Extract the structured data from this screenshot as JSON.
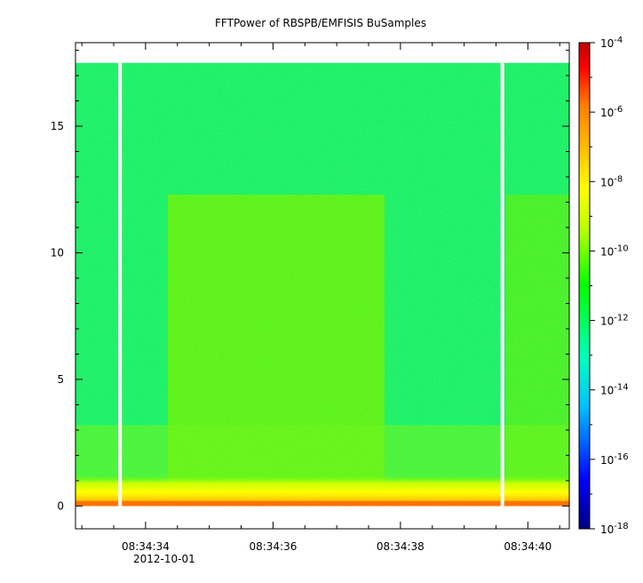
{
  "chart_data": {
    "type": "heatmap",
    "title": "FFTPower of RBSPB/EMFISIS  BuSamples",
    "xlabel": "",
    "ylabel": "",
    "x_ticks": [
      "08:34:34",
      "08:34:36",
      "08:34:38",
      "08:34:40"
    ],
    "x_tick_values_seconds": [
      34,
      36,
      38,
      40
    ],
    "x_date_label": "2012-10-01",
    "xlim_seconds": [
      32.9,
      40.65
    ],
    "y_ticks": [
      0,
      5,
      10,
      15
    ],
    "ylim": [
      -0.9,
      18.3
    ],
    "y_max_data": 17.5,
    "data_gaps_seconds": [
      33.6,
      39.6
    ],
    "lower_band_span_seconds": [
      34.35,
      37.75
    ],
    "lower_band_top": 12.3,
    "upper_region_band_start_seconds": 39.65,
    "colorbar": {
      "scale": "log",
      "range": [
        1e-18,
        0.0001
      ],
      "tick_exponents": [
        -4,
        -6,
        -8,
        -10,
        -12,
        -14,
        -16,
        -18
      ],
      "tick_base": "10",
      "colormap": [
        "#00007f",
        "#0000ff",
        "#00bfff",
        "#00ffbf",
        "#00ff00",
        "#bfff00",
        "#ffff00",
        "#ffbf00",
        "#ff7f00",
        "#ff0000",
        "#bf0000"
      ]
    }
  }
}
